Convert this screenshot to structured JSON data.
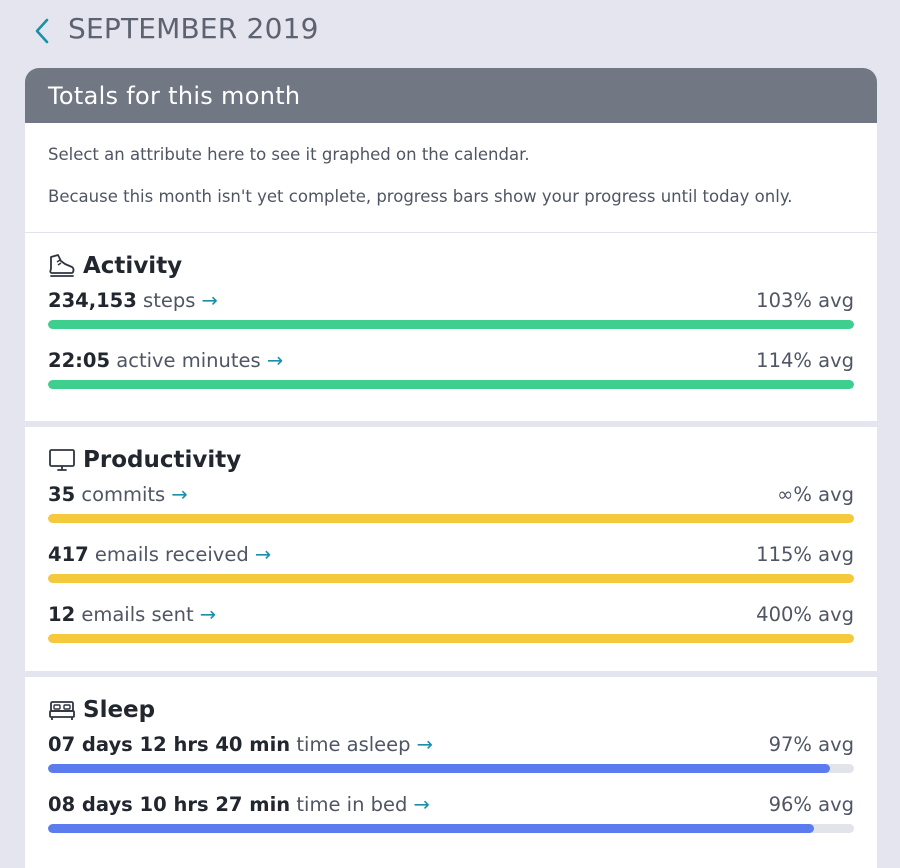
{
  "header": {
    "title": "SEPTEMBER 2019",
    "back_icon": "chevron-left-icon"
  },
  "panel": {
    "title": "Totals for this month",
    "intro_1": "Select an attribute here to see it graphed on the calendar.",
    "intro_2": "Because this month isn't yet complete, progress bars show your progress until today only."
  },
  "colors": {
    "activity": "#3ecf8e",
    "productivity": "#f5c93c",
    "sleep": "#5b7bef",
    "link_arrow": "#1c8fa8"
  },
  "sections": [
    {
      "title": "Activity",
      "icon": "shoe-icon",
      "metrics": [
        {
          "value": "234,153",
          "label": "steps",
          "arrow": "→",
          "avg": "103% avg",
          "fill": 1.0
        },
        {
          "value": "22:05",
          "label": "active minutes",
          "arrow": "→",
          "avg": "114% avg",
          "fill": 1.0
        }
      ]
    },
    {
      "title": "Productivity",
      "icon": "monitor-icon",
      "metrics": [
        {
          "value": "35",
          "label": "commits",
          "arrow": "→",
          "avg": "∞% avg",
          "fill": 1.0
        },
        {
          "value": "417",
          "label": "emails received",
          "arrow": "→",
          "avg": "115% avg",
          "fill": 1.0
        },
        {
          "value": "12",
          "label": "emails sent",
          "arrow": "→",
          "avg": "400% avg",
          "fill": 1.0
        }
      ]
    },
    {
      "title": "Sleep",
      "icon": "bed-icon",
      "metrics": [
        {
          "value": "07 days 12 hrs 40 min",
          "label": "time asleep",
          "arrow": "→",
          "avg": "97% avg",
          "fill": 0.97
        },
        {
          "value": "08 days 10 hrs 27 min",
          "label": "time in bed",
          "arrow": "→",
          "avg": "96% avg",
          "fill": 0.95
        }
      ]
    }
  ]
}
